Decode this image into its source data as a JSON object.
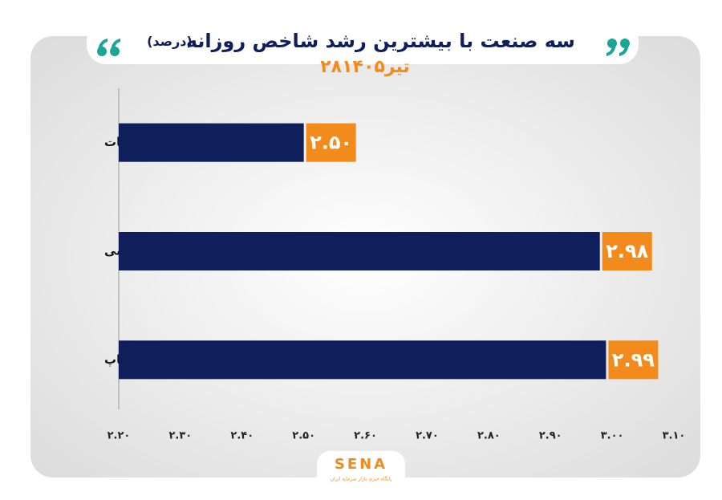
{
  "chart_data": {
    "type": "bar",
    "orientation": "horizontal",
    "title": "سه صنعت با بیشترین رشد شاخص روزانه",
    "title_unit": "(درصد)",
    "subtitle": "۲۸تیر۱۴۰۵",
    "categories": [
      "منسوجات",
      "خرده فروشی",
      "انتشار وچاپ"
    ],
    "values": [
      2.5,
      2.98,
      2.99
    ],
    "value_labels": [
      "۲.۵۰",
      "۲.۹۸",
      "۲.۹۹"
    ],
    "color": "#0e1f5b",
    "label_color": "#f28a1c",
    "xlim": [
      2.2,
      3.1
    ],
    "xticks": [
      {
        "value": 2.2,
        "label": "۲.۲۰"
      },
      {
        "value": 2.3,
        "label": "۲.۳۰"
      },
      {
        "value": 2.4,
        "label": "۲.۴۰"
      },
      {
        "value": 2.5,
        "label": "۲.۵۰"
      },
      {
        "value": 2.6,
        "label": "۲.۶۰"
      },
      {
        "value": 2.7,
        "label": "۲.۷۰"
      },
      {
        "value": 2.8,
        "label": "۲.۸۰"
      },
      {
        "value": 2.9,
        "label": "۲.۹۰"
      },
      {
        "value": 3.0,
        "label": "۳.۰۰"
      },
      {
        "value": 3.1,
        "label": "۳.۱۰"
      }
    ],
    "grid": false
  },
  "logo": {
    "text": "SENA",
    "tagline": "پایگاه خبری بازار سرمایه ایران"
  }
}
